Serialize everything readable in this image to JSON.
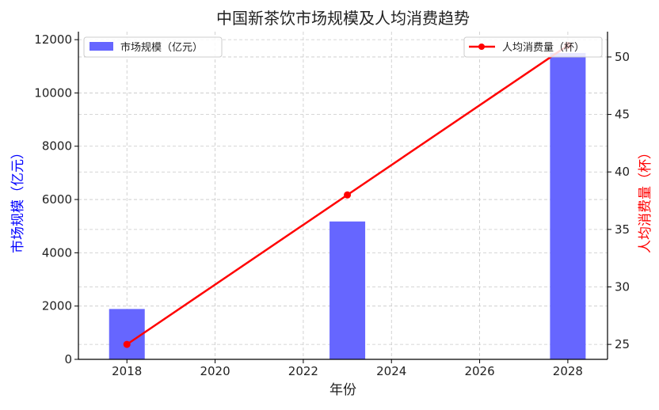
{
  "chart_data": {
    "type": "bar+line",
    "title": "中国新茶饮市场规模及人均消费趋势",
    "xlabel": "年份",
    "x_ticks": [
      2018,
      2020,
      2022,
      2024,
      2026,
      2028
    ],
    "xlim": [
      2016.9,
      2028.9
    ],
    "grid": true,
    "bar_series": {
      "name": "市场规模（亿元）",
      "axis": "left",
      "ylabel": "市场规模（亿元）",
      "ylim": [
        0,
        12300
      ],
      "y_ticks": [
        0,
        2000,
        4000,
        6000,
        8000,
        10000,
        12000
      ],
      "color": "#6666ff",
      "x": [
        2018,
        2023,
        2028
      ],
      "values": [
        1890,
        5175,
        11500
      ],
      "legend_position": "top-left"
    },
    "line_series": {
      "name": "人均消费量（杯）",
      "axis": "right",
      "ylabel": "人均消费量（杯）",
      "ylim": [
        23.7,
        52.2
      ],
      "y_ticks": [
        25,
        30,
        35,
        40,
        45,
        50
      ],
      "color": "#ff0000",
      "x": [
        2018,
        2023,
        2028
      ],
      "values": [
        25,
        38,
        51
      ],
      "legend_position": "top-right"
    }
  }
}
